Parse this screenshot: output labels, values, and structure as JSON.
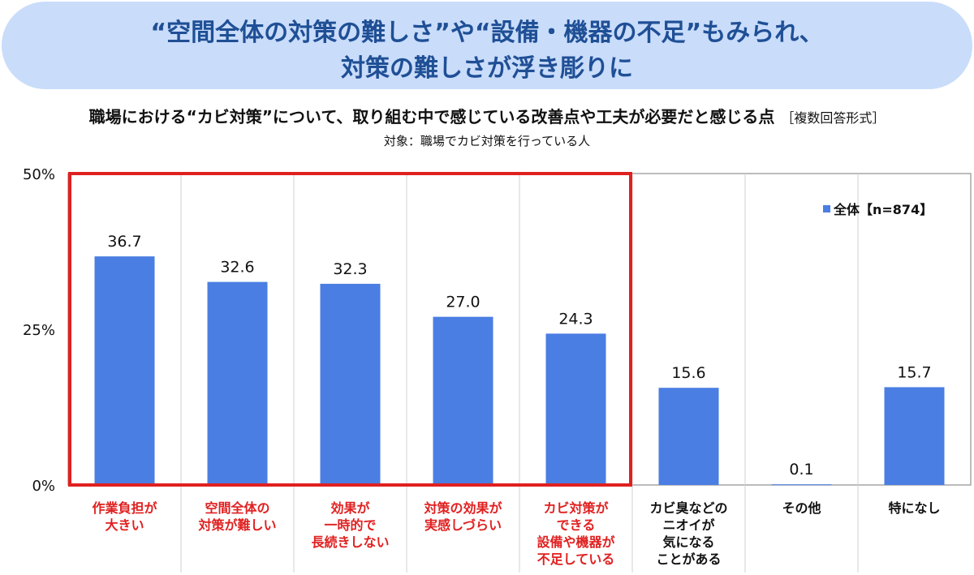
{
  "banner": {
    "line1": "“空間全体の対策の難しさ”や“設備・機器の不足”もみられ、",
    "line2": "対策の難しさが浮き彫りに"
  },
  "subtitle": {
    "main": "職場における“カビ対策”について、取り組む中で感じている改善点や工夫が必要だと感じる点",
    "tag": "［複数回答形式］"
  },
  "target_note": "対象：職場でカビ対策を行っている人",
  "colors": {
    "bar": "#4a7ee3",
    "highlight_box": "#e02020",
    "highlight_text": "#e02020",
    "grid": "#cccccc"
  },
  "chart_data": {
    "type": "bar",
    "categories": [
      [
        "作業負担が",
        "大きい"
      ],
      [
        "空間全体の",
        "対策が難しい"
      ],
      [
        "効果が",
        "一時的で",
        "長続きしない"
      ],
      [
        "対策の効果が",
        "実感しづらい"
      ],
      [
        "カビ対策が",
        "できる",
        "設備や機器が",
        "不足している"
      ],
      [
        "カビ臭などの",
        "ニオイが",
        "気になる",
        "ことがある"
      ],
      [
        "その他"
      ],
      [
        "特になし"
      ]
    ],
    "series": [
      {
        "name": "全体【n=874】",
        "values": [
          36.7,
          32.6,
          32.3,
          27.0,
          24.3,
          15.6,
          0.1,
          15.7
        ]
      }
    ],
    "value_labels": [
      "36.7",
      "32.6",
      "32.3",
      "27.0",
      "24.3",
      "15.6",
      "0.1",
      "15.7"
    ],
    "y_ticks": [
      "0%",
      "25%",
      "50%"
    ],
    "ylim": [
      0,
      50
    ],
    "highlighted_categories": [
      0,
      1,
      2,
      3,
      4
    ],
    "legend_position": "top-right"
  }
}
